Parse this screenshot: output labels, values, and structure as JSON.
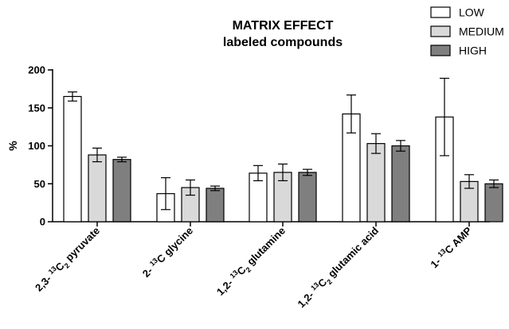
{
  "chart_data": {
    "type": "bar",
    "title": [
      "MATRIX EFFECT",
      "labeled compounds"
    ],
    "ylabel": "%",
    "xlabel": "",
    "ylim": [
      0,
      200
    ],
    "yticks": [
      0,
      50,
      100,
      150,
      200
    ],
    "categories": [
      {
        "prefix": "2,3-",
        "sup": "13",
        "base": "C",
        "sub": "2",
        "suffix": "pyruvate"
      },
      {
        "prefix": "2-",
        "sup": "13",
        "base": "C",
        "sub": "",
        "suffix": "glycine"
      },
      {
        "prefix": "1,2-",
        "sup": "13",
        "base": "C",
        "sub": "2",
        "suffix": "glutamine"
      },
      {
        "prefix": "1,2-",
        "sup": "13",
        "base": "C",
        "sub": "2",
        "suffix": "glutamic acid"
      },
      {
        "prefix": "1-",
        "sup": "13",
        "base": "C",
        "sub": "",
        "suffix": "AMP"
      }
    ],
    "series": [
      {
        "name": "LOW",
        "color": "#ffffff",
        "values": [
          165,
          37,
          64,
          142,
          138
        ],
        "errors": [
          6,
          21,
          10,
          25,
          51
        ]
      },
      {
        "name": "MEDIUM",
        "color": "#d9d9d9",
        "values": [
          88,
          45,
          65,
          103,
          53
        ],
        "errors": [
          9,
          10,
          11,
          13,
          9
        ]
      },
      {
        "name": "HIGH",
        "color": "#7f7f7f",
        "values": [
          82,
          44,
          65,
          100,
          50
        ],
        "errors": [
          3,
          3,
          4,
          7,
          5
        ]
      }
    ],
    "legend": "top-right",
    "grid": false,
    "error_bars": true
  }
}
